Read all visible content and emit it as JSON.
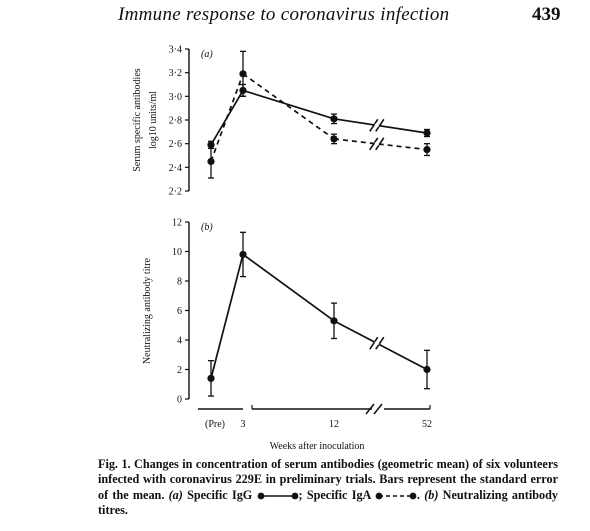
{
  "header": {
    "title": "Immune response to coronavirus infection",
    "page_number": "439"
  },
  "figure": {
    "xlabel": "Weeks after inoculation",
    "x_ticks": [
      "(Pre)",
      "3",
      "12",
      "52"
    ]
  },
  "chart_data": [
    {
      "type": "line",
      "panel_label": "(a)",
      "ylabel_line1": "Serum specific antibodies",
      "ylabel_line2": "log10 units/ml",
      "ylim": [
        2.2,
        3.4
      ],
      "y_ticks": [
        "2·2",
        "2·4",
        "2·6",
        "2·8",
        "3·0",
        "3·2",
        "3·4"
      ],
      "categories": [
        "(Pre)",
        "3",
        "12",
        "52"
      ],
      "series": [
        {
          "name": "Specific IgG",
          "style": "solid",
          "values": [
            2.59,
            3.05,
            2.81,
            2.69
          ],
          "errors": [
            0.03,
            0.05,
            0.04,
            0.03
          ]
        },
        {
          "name": "Specific IgA",
          "style": "dashed",
          "values": [
            2.45,
            3.19,
            2.64,
            2.55
          ],
          "errors": [
            0.14,
            0.19,
            0.04,
            0.05
          ]
        }
      ],
      "axis_break_between": [
        "12",
        "52"
      ]
    },
    {
      "type": "line",
      "panel_label": "(b)",
      "ylabel": "Neutralizing antibody titre",
      "ylim": [
        0,
        12
      ],
      "y_ticks": [
        "0",
        "2",
        "4",
        "6",
        "8",
        "10",
        "12"
      ],
      "categories": [
        "(Pre)",
        "3",
        "12",
        "52"
      ],
      "series": [
        {
          "name": "Neutralizing antibody titres",
          "style": "solid",
          "values": [
            1.4,
            9.8,
            5.3,
            2.0
          ],
          "errors": [
            1.2,
            1.5,
            1.2,
            1.3
          ]
        }
      ],
      "axis_break_between": [
        "12",
        "52"
      ]
    }
  ],
  "caption": {
    "part1": "Fig. 1. Changes in concentration of serum antibodies (geometric mean) of six volunteers infected with coronavirus 229E in preliminary trials. Bars represent the standard error of the mean. ",
    "part2": "(a)",
    "part3": " Specific IgG ",
    "part4": "; Specific IgA ",
    "part5": ". ",
    "part6": "(b)",
    "part7": " Neutralizing antibody titres."
  }
}
